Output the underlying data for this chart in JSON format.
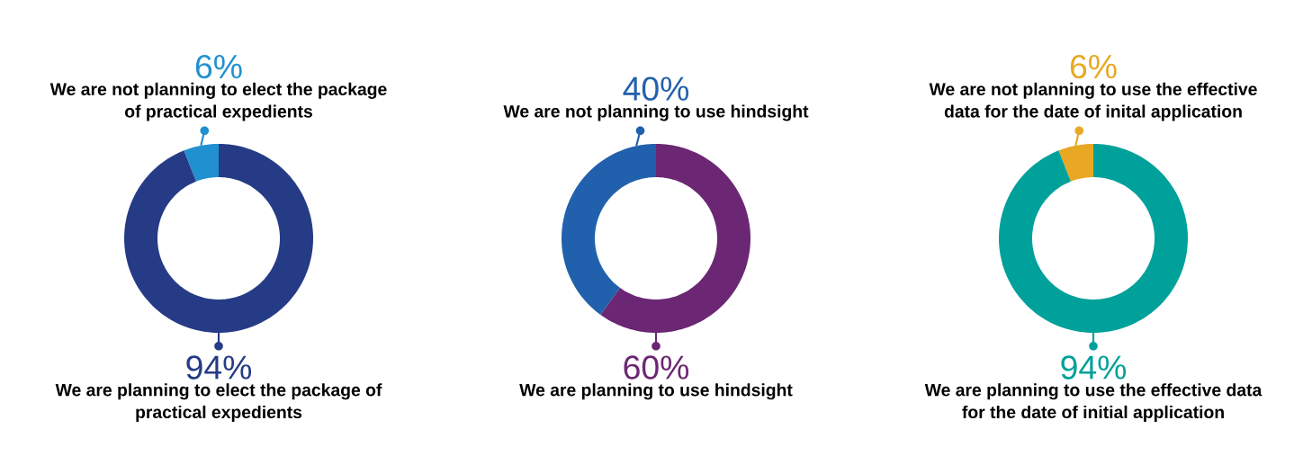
{
  "chart_data": [
    {
      "type": "donut",
      "categories": [
        "We are not planning to elect the package of practical expedients",
        "We are planning to elect the package of practical expedients"
      ],
      "values": [
        6,
        94
      ],
      "colors": [
        "#2190d0",
        "#263b86"
      ],
      "value_labels": [
        "6%",
        "94%"
      ]
    },
    {
      "type": "donut",
      "categories": [
        "We are not planning to use hindsight",
        "We are planning to use hindsight"
      ],
      "values": [
        40,
        60
      ],
      "colors": [
        "#2160ac",
        "#6b2773"
      ],
      "value_labels": [
        "40%",
        "60%"
      ]
    },
    {
      "type": "donut",
      "categories": [
        "We are not planning to use the effective data for the date of inital application",
        "We are planning to use the effective data for the date of initial application"
      ],
      "values": [
        6,
        94
      ],
      "colors": [
        "#e8a823",
        "#00a19a"
      ],
      "value_labels": [
        "6%",
        "94%"
      ]
    }
  ]
}
